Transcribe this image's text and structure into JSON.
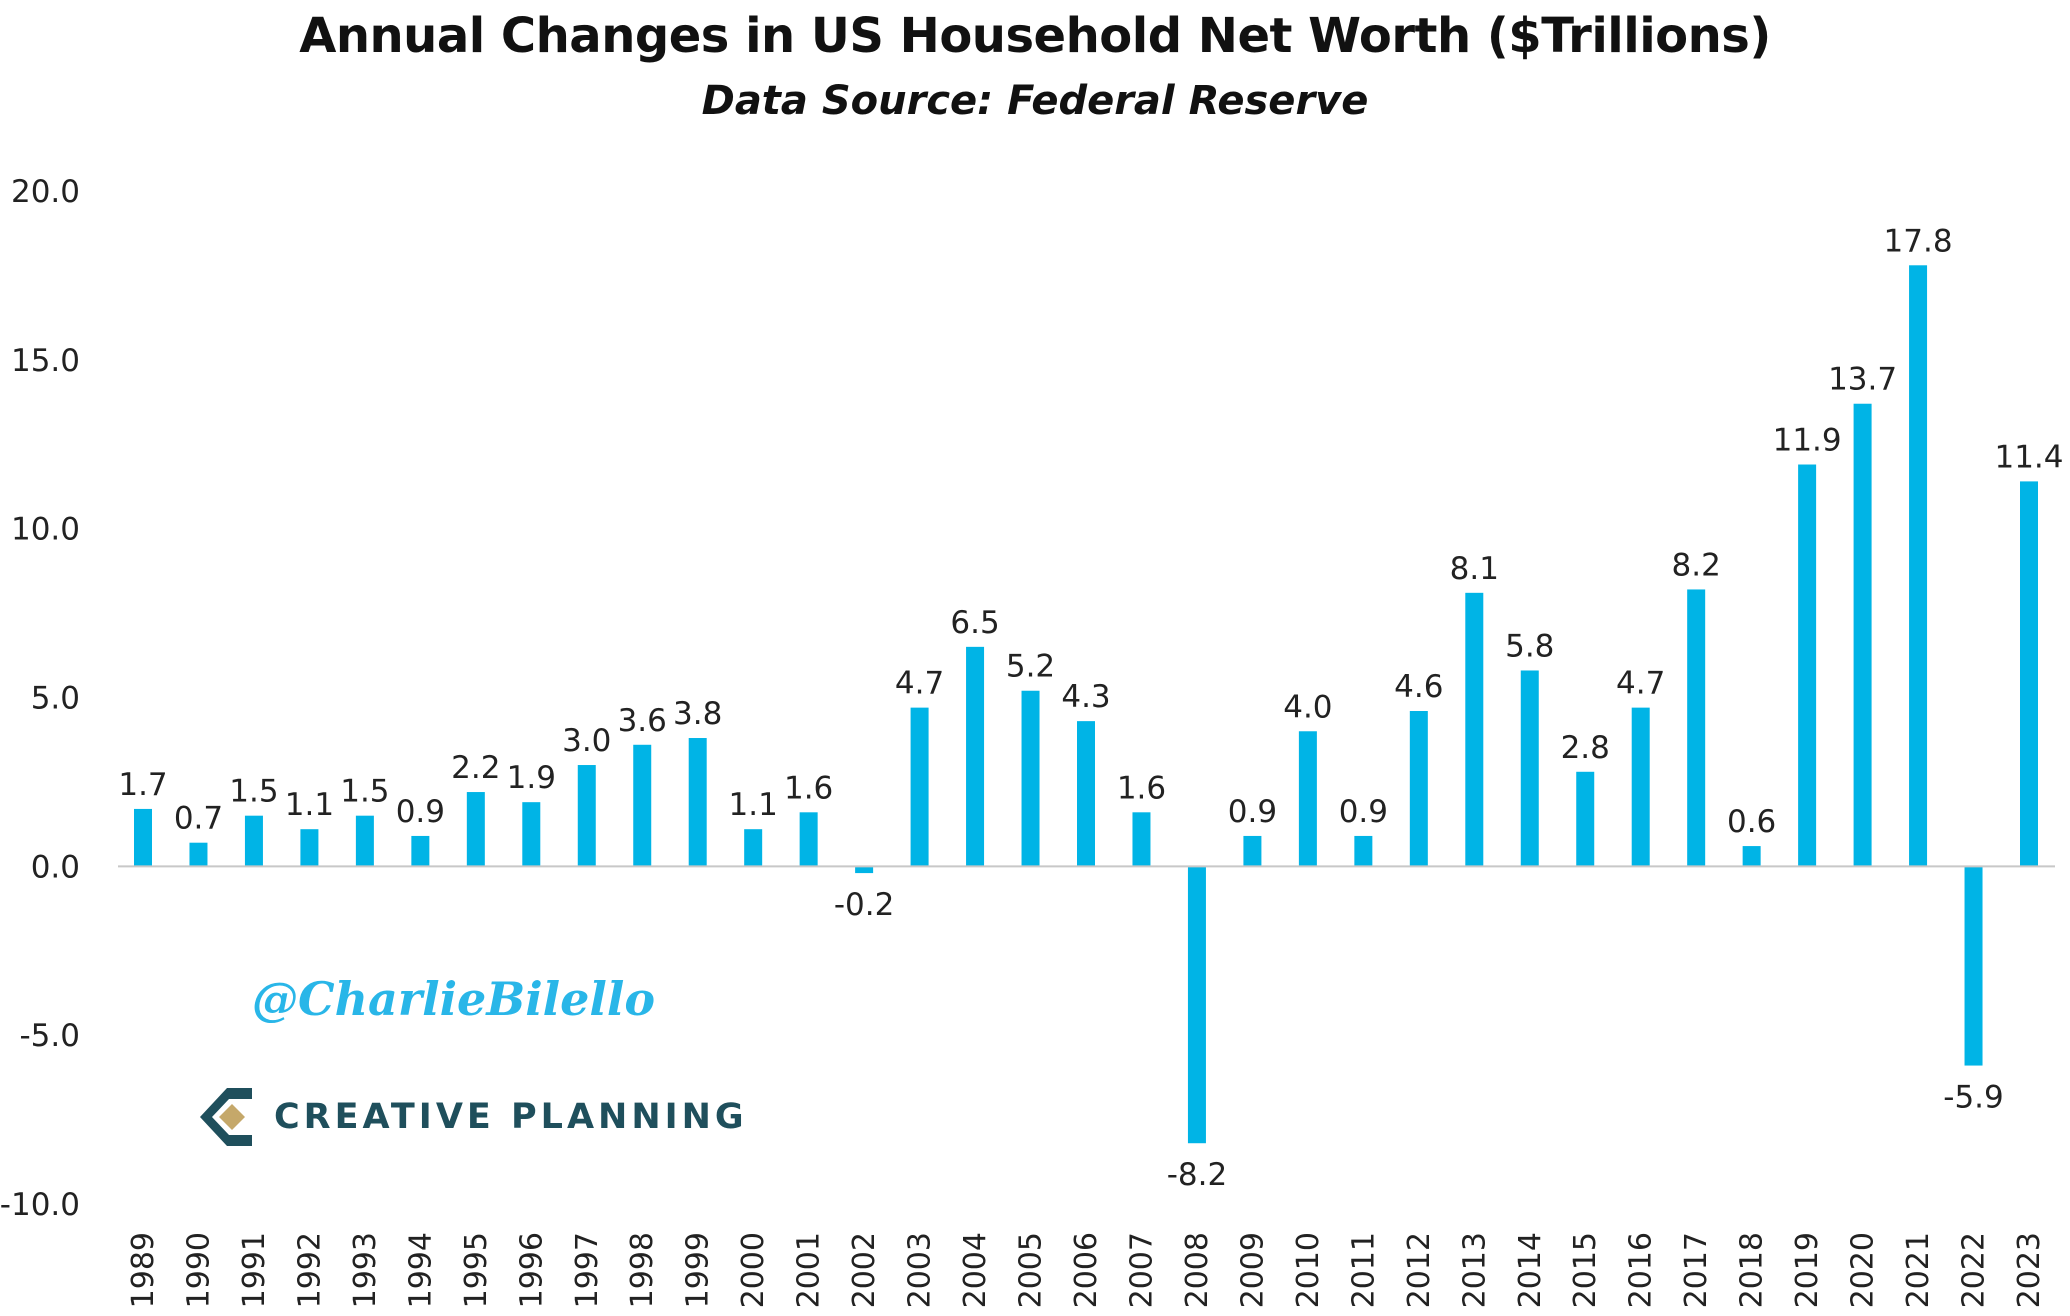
{
  "colors": {
    "bar": "#00b4e6",
    "zero_line": "#c8c8c8",
    "logo_teal": "#1f4f5c",
    "logo_gold": "#c5a86a",
    "watermark": "#29b6e8"
  },
  "watermark_text": "@CharlieBilello",
  "logo": {
    "text": "CREATIVE PLANNING",
    "icon": "creative-planning-logo-icon"
  },
  "chart_data": {
    "type": "bar",
    "title": "Annual Changes in US Household Net Worth ($Trillions)",
    "subtitle": "Data Source: Federal Reserve",
    "xlabel": "",
    "ylabel": "",
    "categories": [
      "1989",
      "1990",
      "1991",
      "1992",
      "1993",
      "1994",
      "1995",
      "1996",
      "1997",
      "1998",
      "1999",
      "2000",
      "2001",
      "2002",
      "2003",
      "2004",
      "2005",
      "2006",
      "2007",
      "2008",
      "2009",
      "2010",
      "2011",
      "2012",
      "2013",
      "2014",
      "2015",
      "2016",
      "2017",
      "2018",
      "2019",
      "2020",
      "2021",
      "2022",
      "2023"
    ],
    "values": [
      1.7,
      0.7,
      1.5,
      1.1,
      1.5,
      0.9,
      2.2,
      1.9,
      3.0,
      3.6,
      3.8,
      1.1,
      1.6,
      -0.2,
      4.7,
      6.5,
      5.2,
      4.3,
      1.6,
      -8.2,
      0.9,
      4.0,
      0.9,
      4.6,
      8.1,
      5.8,
      2.8,
      4.7,
      8.2,
      0.6,
      11.9,
      13.7,
      17.8,
      -5.9,
      11.4
    ],
    "ylim": [
      -10,
      20
    ],
    "yticks": [
      -10,
      -5,
      0,
      5,
      10,
      15,
      20
    ],
    "ytick_labels": [
      "-10.0",
      "-5.0",
      "0.0",
      "5.0",
      "10.0",
      "15.0",
      "20.0"
    ],
    "data_labels": true,
    "grid": false,
    "legend": "none"
  }
}
